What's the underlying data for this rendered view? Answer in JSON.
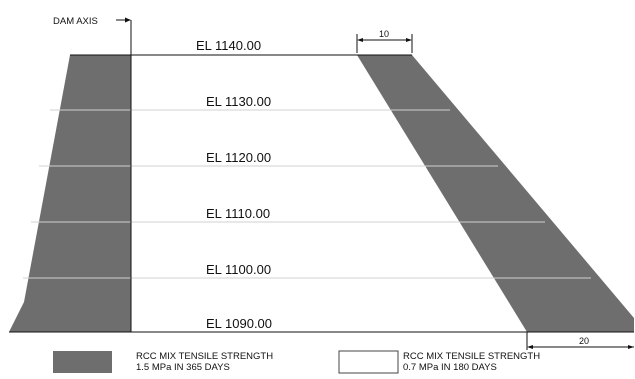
{
  "dam_axis_label": "DAM AXIS",
  "elevations": [
    {
      "label": "EL 1140.00"
    },
    {
      "label": "EL 1130.00"
    },
    {
      "label": "EL 1120.00"
    },
    {
      "label": "EL 1110.00"
    },
    {
      "label": "EL 1100.00"
    },
    {
      "label": "EL 1090.00"
    }
  ],
  "dimensions": {
    "crest_width": "10",
    "base_width": "20"
  },
  "legend": [
    {
      "line1": "RCC MIX TENSILE STRENGTH",
      "line2": "1.5 MPa IN 365 DAYS",
      "swatch": "#6e6e6e"
    },
    {
      "line1": "RCC MIX TENSILE STRENGTH",
      "line2": "0.7 MPa IN 180 DAYS",
      "swatch": "#ffffff"
    }
  ],
  "colors": {
    "high_strength_fill": "#6e6e6e",
    "low_strength_fill": "#ffffff",
    "lift_line": "#d0d0d0",
    "outline": "#111111"
  }
}
